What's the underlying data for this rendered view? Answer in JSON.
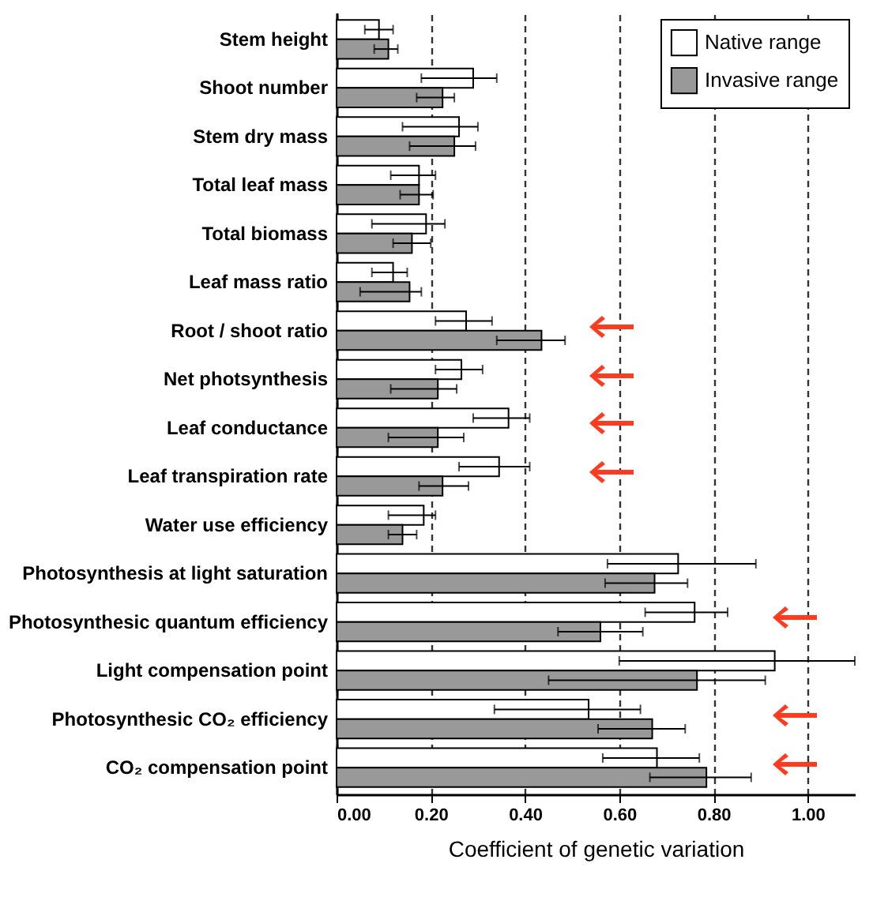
{
  "chart_data": {
    "type": "bar",
    "orientation": "horizontal",
    "xlabel": "Coefficient of genetic variation",
    "categories": [
      "Stem height",
      "Shoot number",
      "Stem  dry mass",
      "Total leaf mass",
      "Total biomass",
      "Leaf mass ratio",
      "Root / shoot ratio",
      "Net photsynthesis",
      "Leaf conductance",
      "Leaf transpiration rate",
      "Water use efficiency",
      "Photosynthesis at light saturation",
      "Photosynthesic quantum efficiency",
      "Light compensation point",
      "Photosynthesic CO₂ efficiency",
      "CO₂ compensation point"
    ],
    "series": [
      {
        "name": "Native range",
        "color": "#ffffff",
        "values": [
          0.09,
          0.29,
          0.26,
          0.175,
          0.19,
          0.12,
          0.275,
          0.265,
          0.365,
          0.345,
          0.185,
          0.725,
          0.76,
          0.93,
          0.535,
          0.68
        ],
        "errors": [
          [
            0.06,
            0.12
          ],
          [
            0.18,
            0.34
          ],
          [
            0.14,
            0.3
          ],
          [
            0.115,
            0.21
          ],
          [
            0.075,
            0.23
          ],
          [
            0.075,
            0.15
          ],
          [
            0.21,
            0.33
          ],
          [
            0.21,
            0.31
          ],
          [
            0.29,
            0.41
          ],
          [
            0.26,
            0.41
          ],
          [
            0.11,
            0.21
          ],
          [
            0.575,
            0.89
          ],
          [
            0.655,
            0.83
          ],
          [
            0.6,
            1.1
          ],
          [
            0.335,
            0.645
          ],
          [
            0.565,
            0.77
          ]
        ]
      },
      {
        "name": "Invasive range",
        "color": "#999999",
        "values": [
          0.11,
          0.225,
          0.25,
          0.175,
          0.16,
          0.155,
          0.435,
          0.215,
          0.215,
          0.225,
          0.14,
          0.675,
          0.56,
          0.765,
          0.67,
          0.785
        ],
        "errors": [
          [
            0.08,
            0.13
          ],
          [
            0.17,
            0.25
          ],
          [
            0.155,
            0.295
          ],
          [
            0.135,
            0.205
          ],
          [
            0.12,
            0.2
          ],
          [
            0.05,
            0.18
          ],
          [
            0.34,
            0.485
          ],
          [
            0.115,
            0.255
          ],
          [
            0.11,
            0.27
          ],
          [
            0.175,
            0.28
          ],
          [
            0.11,
            0.17
          ],
          [
            0.57,
            0.745
          ],
          [
            0.47,
            0.65
          ],
          [
            0.45,
            0.91
          ],
          [
            0.555,
            0.74
          ],
          [
            0.665,
            0.88
          ]
        ]
      }
    ],
    "xlim": [
      0,
      1.1
    ],
    "xticks": [
      {
        "value": 0,
        "label": "0.00"
      },
      {
        "value": 0.2,
        "label": "0.20"
      },
      {
        "value": 0.4,
        "label": "0.40"
      },
      {
        "value": 0.6,
        "label": "0.60"
      },
      {
        "value": 0.8,
        "label": "0.80"
      },
      {
        "value": 1,
        "label": "1.00"
      }
    ],
    "grid": "x",
    "legend": "top right"
  }
}
